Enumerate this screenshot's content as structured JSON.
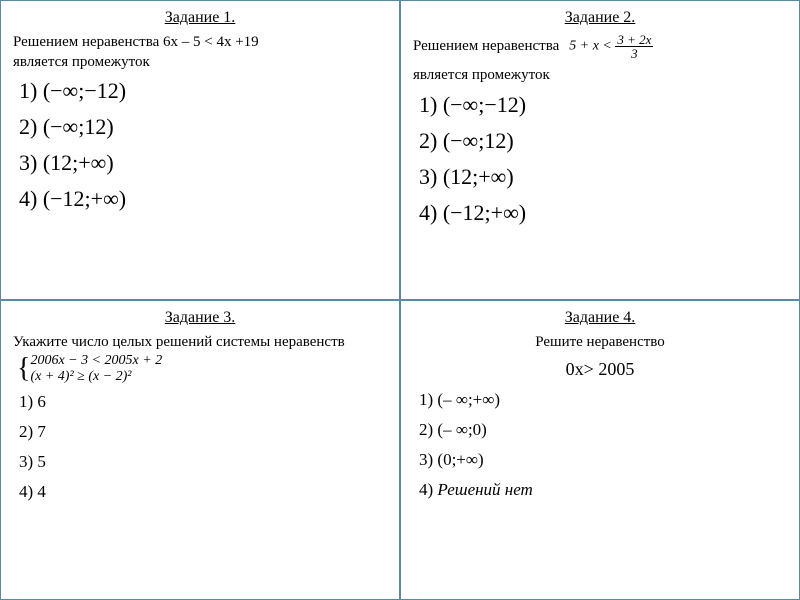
{
  "q1": {
    "title": "Задание 1.",
    "prompt_a": "Решением неравенства 6х – 5 < 4х +19",
    "prompt_b": "является промежуток",
    "opts": [
      "1) (−∞;−12)",
      "2) (−∞;12)",
      "3) (12;+∞)",
      "4) (−12;+∞)"
    ]
  },
  "q2": {
    "title": "Задание 2.",
    "prompt_a": "Решением неравенства",
    "ineq_left": "5 + x <",
    "frac_num": "3 + 2x",
    "frac_den": "3",
    "prompt_b": "является промежуток",
    "opts": [
      "1) (−∞;−12)",
      "2) (−∞;12)",
      "3) (12;+∞)",
      "4) (−12;+∞)"
    ]
  },
  "q3": {
    "title": "Задание 3.",
    "prompt": "Укажите число целых решений системы неравенств",
    "sys1": "2006x − 3 < 2005x + 2",
    "sys2": "(x + 4)² ≥ (x − 2)²",
    "opts": [
      "1) 6",
      "2) 7",
      "3) 5",
      "4) 4"
    ]
  },
  "q4": {
    "title": "Задание 4.",
    "prompt": "Решите неравенство",
    "ineq": "0х> 2005",
    "opts": [
      "1) (– ∞;+∞)",
      "2) (– ∞;0)",
      "3) (0;+∞)"
    ],
    "opt4_label": "4) ",
    "opt4_ans": "Решений нет"
  },
  "colors": {
    "border": "#5a8a9e",
    "bg": "#ffffff",
    "text": "#000000"
  }
}
